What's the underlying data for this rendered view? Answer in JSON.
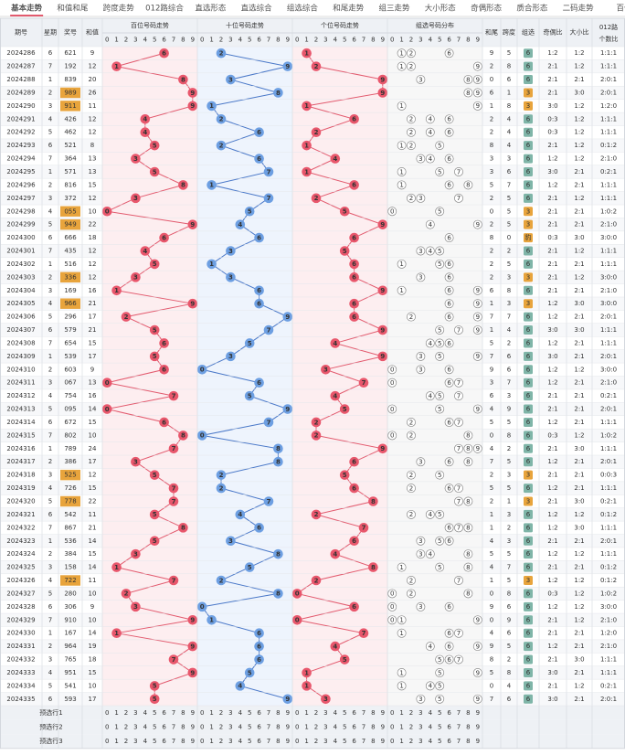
{
  "tabs": [
    "基本走势",
    "和值和尾",
    "跨度走势",
    "012路综合",
    "直选形态",
    "直选综合",
    "组选综合",
    "和尾走势",
    "组三走势",
    "大小形态",
    "奇偶形态",
    "质合形态",
    "二码走势",
    "百位"
  ],
  "header": {
    "period": "期号",
    "week": "星期",
    "number": "奖号",
    "sum": "和值",
    "hundreds": "百位号码走势",
    "tens": "十位号码走势",
    "ones": "个位号码走势",
    "group_dist": "组选号码分布",
    "tail": "和尾",
    "span": "跨度",
    "group": "组选",
    "odd_even": "奇偶比",
    "big_small": "大小比",
    "mod_ratio_1": "012路",
    "mod_ratio_2": "个数比"
  },
  "digit_labels": [
    "0",
    "1",
    "2",
    "3",
    "4",
    "5",
    "6",
    "7",
    "8",
    "9"
  ],
  "rows": [
    [
      "2024286",
      "6",
      "621",
      "9",
      "9",
      "5",
      "6",
      "1:2",
      "1:2",
      "1:1:1",
      [
        6,
        2,
        1
      ]
    ],
    [
      "2024287",
      "7",
      "192",
      "12",
      "2",
      "8",
      "6",
      "2:1",
      "1:2",
      "1:1:1",
      [
        1,
        9,
        2
      ]
    ],
    [
      "2024288",
      "1",
      "839",
      "20",
      "0",
      "6",
      "6",
      "2:1",
      "2:1",
      "2:0:1",
      [
        8,
        3,
        9
      ]
    ],
    [
      "2024289",
      "2",
      "989",
      "26",
      "6",
      "1",
      "3",
      "2:1",
      "3:0",
      "2:0:1",
      [
        9,
        8,
        9
      ]
    ],
    [
      "2024290",
      "3",
      "911",
      "11",
      "1",
      "8",
      "3",
      "3:0",
      "1:2",
      "1:2:0",
      [
        9,
        1,
        1
      ]
    ],
    [
      "2024291",
      "4",
      "426",
      "12",
      "2",
      "4",
      "6",
      "0:3",
      "1:2",
      "1:1:1",
      [
        4,
        2,
        6
      ]
    ],
    [
      "2024292",
      "5",
      "462",
      "12",
      "2",
      "4",
      "6",
      "0:3",
      "1:2",
      "1:1:1",
      [
        4,
        6,
        2
      ]
    ],
    [
      "2024293",
      "6",
      "521",
      "8",
      "8",
      "4",
      "6",
      "2:1",
      "1:2",
      "0:1:2",
      [
        5,
        2,
        1
      ]
    ],
    [
      "2024294",
      "7",
      "364",
      "13",
      "3",
      "3",
      "6",
      "1:2",
      "1:2",
      "2:1:0",
      [
        3,
        6,
        4
      ]
    ],
    [
      "2024295",
      "1",
      "571",
      "13",
      "3",
      "6",
      "6",
      "3:0",
      "2:1",
      "0:2:1",
      [
        5,
        7,
        1
      ]
    ],
    [
      "2024296",
      "2",
      "816",
      "15",
      "5",
      "7",
      "6",
      "1:2",
      "2:1",
      "1:1:1",
      [
        8,
        1,
        6
      ]
    ],
    [
      "2024297",
      "3",
      "372",
      "12",
      "2",
      "5",
      "6",
      "2:1",
      "1:2",
      "1:1:1",
      [
        3,
        7,
        2
      ]
    ],
    [
      "2024298",
      "4",
      "055",
      "10",
      "0",
      "5",
      "3",
      "2:1",
      "2:1",
      "1:0:2",
      [
        0,
        5,
        5
      ]
    ],
    [
      "2024299",
      "5",
      "949",
      "22",
      "2",
      "5",
      "3",
      "2:1",
      "2:1",
      "2:1:0",
      [
        9,
        4,
        9
      ]
    ],
    [
      "2024300",
      "6",
      "666",
      "18",
      "8",
      "0",
      "豹",
      "0:3",
      "3:0",
      "3:0:0",
      [
        6,
        6,
        6
      ]
    ],
    [
      "2024301",
      "7",
      "435",
      "12",
      "2",
      "2",
      "6",
      "2:1",
      "1:2",
      "1:1:1",
      [
        4,
        3,
        5
      ]
    ],
    [
      "2024302",
      "1",
      "516",
      "12",
      "2",
      "5",
      "6",
      "2:1",
      "2:1",
      "1:1:1",
      [
        5,
        1,
        6
      ]
    ],
    [
      "2024303",
      "2",
      "336",
      "12",
      "2",
      "3",
      "3",
      "2:1",
      "1:2",
      "3:0:0",
      [
        3,
        3,
        6
      ]
    ],
    [
      "2024304",
      "3",
      "169",
      "16",
      "6",
      "8",
      "6",
      "2:1",
      "2:1",
      "2:1:0",
      [
        1,
        6,
        9
      ]
    ],
    [
      "2024305",
      "4",
      "966",
      "21",
      "1",
      "3",
      "3",
      "1:2",
      "3:0",
      "3:0:0",
      [
        9,
        6,
        6
      ]
    ],
    [
      "2024306",
      "5",
      "296",
      "17",
      "7",
      "7",
      "6",
      "1:2",
      "2:1",
      "2:0:1",
      [
        2,
        9,
        6
      ]
    ],
    [
      "2024307",
      "6",
      "579",
      "21",
      "1",
      "4",
      "6",
      "3:0",
      "3:0",
      "1:1:1",
      [
        5,
        7,
        9
      ]
    ],
    [
      "2024308",
      "7",
      "654",
      "15",
      "5",
      "2",
      "6",
      "1:2",
      "2:1",
      "1:1:1",
      [
        6,
        5,
        4
      ]
    ],
    [
      "2024309",
      "1",
      "539",
      "17",
      "7",
      "6",
      "6",
      "3:0",
      "2:1",
      "2:0:1",
      [
        5,
        3,
        9
      ]
    ],
    [
      "2024310",
      "2",
      "603",
      "9",
      "9",
      "6",
      "6",
      "1:2",
      "1:2",
      "3:0:0",
      [
        6,
        0,
        3
      ]
    ],
    [
      "2024311",
      "3",
      "067",
      "13",
      "3",
      "7",
      "6",
      "1:2",
      "2:1",
      "2:1:0",
      [
        0,
        6,
        7
      ]
    ],
    [
      "2024312",
      "4",
      "754",
      "16",
      "6",
      "3",
      "6",
      "2:1",
      "2:1",
      "0:2:1",
      [
        7,
        5,
        4
      ]
    ],
    [
      "2024313",
      "5",
      "095",
      "14",
      "4",
      "9",
      "6",
      "2:1",
      "2:1",
      "2:0:1",
      [
        0,
        9,
        5
      ]
    ],
    [
      "2024314",
      "6",
      "672",
      "15",
      "5",
      "5",
      "6",
      "1:2",
      "2:1",
      "1:1:1",
      [
        6,
        7,
        2
      ]
    ],
    [
      "2024315",
      "7",
      "802",
      "10",
      "0",
      "8",
      "6",
      "0:3",
      "1:2",
      "1:0:2",
      [
        8,
        0,
        2
      ]
    ],
    [
      "2024316",
      "1",
      "789",
      "24",
      "4",
      "2",
      "6",
      "2:1",
      "3:0",
      "1:1:1",
      [
        7,
        8,
        9
      ]
    ],
    [
      "2024317",
      "2",
      "386",
      "17",
      "7",
      "5",
      "6",
      "1:2",
      "2:1",
      "2:0:1",
      [
        3,
        8,
        6
      ]
    ],
    [
      "2024318",
      "3",
      "525",
      "12",
      "2",
      "3",
      "3",
      "2:1",
      "2:1",
      "0:0:3",
      [
        5,
        2,
        5
      ]
    ],
    [
      "2024319",
      "4",
      "726",
      "15",
      "5",
      "5",
      "6",
      "1:2",
      "2:1",
      "1:1:1",
      [
        7,
        2,
        6
      ]
    ],
    [
      "2024320",
      "5",
      "778",
      "22",
      "2",
      "1",
      "3",
      "2:1",
      "3:0",
      "0:2:1",
      [
        7,
        7,
        8
      ]
    ],
    [
      "2024321",
      "6",
      "542",
      "11",
      "1",
      "3",
      "6",
      "1:2",
      "1:2",
      "0:1:2",
      [
        5,
        4,
        2
      ]
    ],
    [
      "2024322",
      "7",
      "867",
      "21",
      "1",
      "2",
      "6",
      "1:2",
      "3:0",
      "1:1:1",
      [
        8,
        6,
        7
      ]
    ],
    [
      "2024323",
      "1",
      "536",
      "14",
      "4",
      "3",
      "6",
      "2:1",
      "2:1",
      "2:0:1",
      [
        5,
        3,
        6
      ]
    ],
    [
      "2024324",
      "2",
      "384",
      "15",
      "5",
      "5",
      "6",
      "1:2",
      "1:2",
      "1:1:1",
      [
        3,
        8,
        4
      ]
    ],
    [
      "2024325",
      "3",
      "158",
      "14",
      "4",
      "7",
      "6",
      "2:1",
      "2:1",
      "0:1:2",
      [
        1,
        5,
        8
      ]
    ],
    [
      "2024326",
      "4",
      "722",
      "11",
      "1",
      "5",
      "3",
      "1:2",
      "1:2",
      "0:1:2",
      [
        7,
        2,
        2
      ]
    ],
    [
      "2024327",
      "5",
      "280",
      "10",
      "0",
      "8",
      "6",
      "0:3",
      "1:2",
      "1:0:2",
      [
        2,
        8,
        0
      ]
    ],
    [
      "2024328",
      "6",
      "306",
      "9",
      "9",
      "6",
      "6",
      "1:2",
      "1:2",
      "3:0:0",
      [
        3,
        0,
        6
      ]
    ],
    [
      "2024329",
      "7",
      "910",
      "10",
      "0",
      "9",
      "6",
      "2:1",
      "1:2",
      "2:1:0",
      [
        9,
        1,
        0
      ]
    ],
    [
      "2024330",
      "1",
      "167",
      "14",
      "4",
      "6",
      "6",
      "2:1",
      "2:1",
      "1:2:0",
      [
        1,
        6,
        7
      ]
    ],
    [
      "2024331",
      "2",
      "964",
      "19",
      "9",
      "5",
      "6",
      "1:2",
      "2:1",
      "2:1:0",
      [
        9,
        6,
        4
      ]
    ],
    [
      "2024332",
      "3",
      "765",
      "18",
      "8",
      "2",
      "6",
      "2:1",
      "3:0",
      "1:1:1",
      [
        7,
        6,
        5
      ]
    ],
    [
      "2024333",
      "4",
      "951",
      "15",
      "5",
      "8",
      "6",
      "3:0",
      "2:1",
      "1:1:1",
      [
        9,
        5,
        1
      ]
    ],
    [
      "2024334",
      "5",
      "541",
      "10",
      "0",
      "4",
      "6",
      "2:1",
      "1:2",
      "0:2:1",
      [
        5,
        4,
        1
      ]
    ],
    [
      "2024335",
      "6",
      "593",
      "17",
      "7",
      "6",
      "6",
      "3:0",
      "2:1",
      "2:0:1",
      [
        5,
        9,
        3
      ]
    ]
  ],
  "preselect": [
    "预选行1",
    "预选行2",
    "预选行3"
  ]
}
